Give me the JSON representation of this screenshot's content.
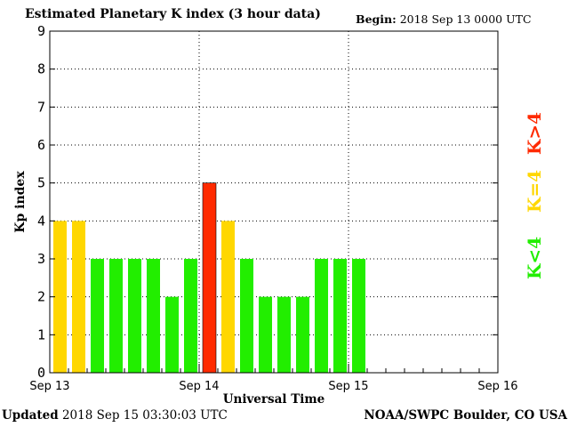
{
  "header": {
    "title": "Estimated Planetary K index (3 hour data)",
    "begin_label": "Begin:",
    "begin_value": "2018 Sep 13 0000 UTC"
  },
  "footer": {
    "updated_label": "Updated",
    "updated_value": "2018 Sep 15 03:30:03 UTC",
    "credit": "NOAA/SWPC Boulder, CO USA"
  },
  "colors": {
    "low": "#22ee00",
    "equal": "#ffd700",
    "high": "#ff2a00",
    "grid": "#000000"
  },
  "legend": {
    "low": "K<4",
    "equal": "K=4",
    "high": "K>4"
  },
  "chart_data": {
    "type": "bar",
    "xlabel": "Universal Time",
    "ylabel": "Kp index",
    "ylim": [
      0,
      9
    ],
    "yticks": [
      0,
      1,
      2,
      3,
      4,
      5,
      6,
      7,
      8,
      9
    ],
    "xticks": [
      "Sep 13",
      "Sep 14",
      "Sep 15",
      "Sep 16"
    ],
    "bar_interval_hours": 3,
    "grid": true,
    "values": [
      4,
      4,
      3,
      3,
      3,
      3,
      2,
      3,
      5,
      4,
      3,
      2,
      2,
      2,
      3,
      3,
      3
    ]
  }
}
